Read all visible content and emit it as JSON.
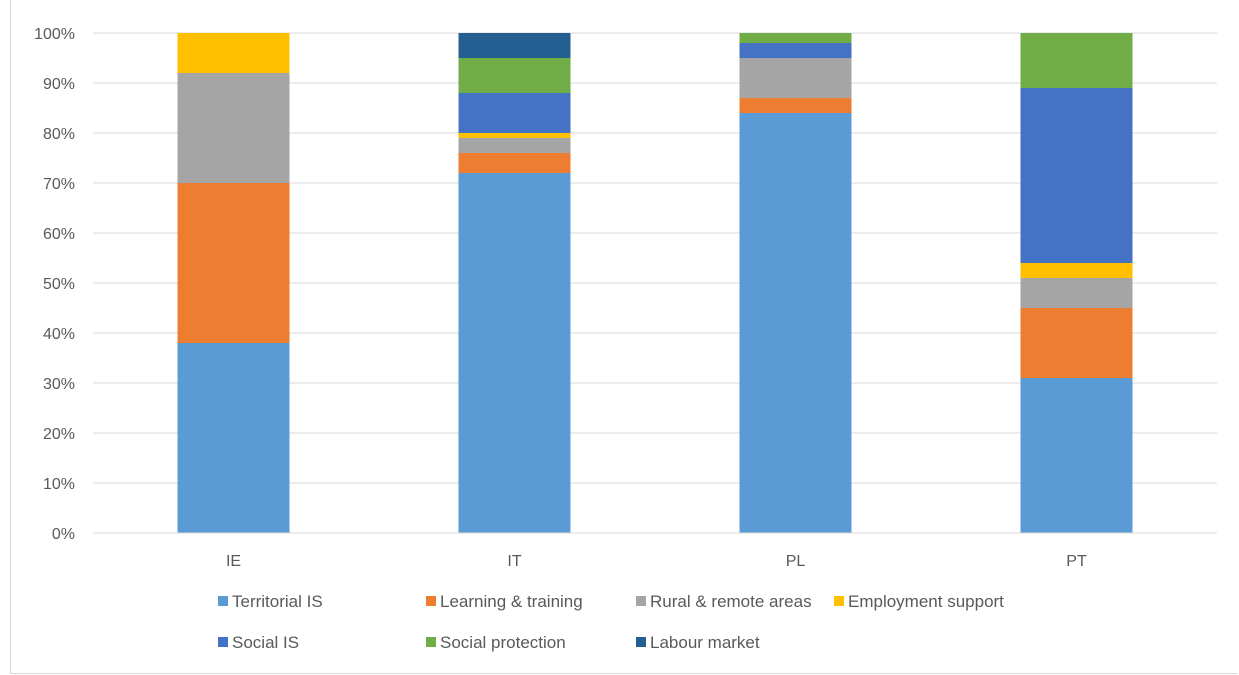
{
  "chart_data": {
    "type": "bar",
    "stacked": true,
    "percent_stacked": true,
    "categories": [
      "IE",
      "IT",
      "PL",
      "PT"
    ],
    "ylim": [
      0,
      100
    ],
    "y_ticks": [
      "0%",
      "10%",
      "20%",
      "30%",
      "40%",
      "50%",
      "60%",
      "70%",
      "80%",
      "90%",
      "100%"
    ],
    "grid": true,
    "legend_position": "bottom",
    "series": [
      {
        "name": "Territorial IS",
        "color": "#5B9BD5",
        "values": [
          38,
          72,
          84,
          31
        ]
      },
      {
        "name": "Learning & training",
        "color": "#ED7D31",
        "values": [
          32,
          4,
          3,
          14
        ]
      },
      {
        "name": "Rural & remote areas",
        "color": "#A5A5A5",
        "values": [
          22,
          3,
          8,
          6
        ]
      },
      {
        "name": "Employment support",
        "color": "#FFC000",
        "values": [
          8,
          1,
          0,
          3
        ]
      },
      {
        "name": "Social IS",
        "color": "#4472C4",
        "values": [
          0,
          8,
          3,
          35
        ]
      },
      {
        "name": "Social protection",
        "color": "#70AD47",
        "values": [
          0,
          7,
          2,
          11
        ]
      },
      {
        "name": "Labour market",
        "color": "#255E91",
        "values": [
          0,
          5,
          0,
          0
        ]
      }
    ]
  }
}
